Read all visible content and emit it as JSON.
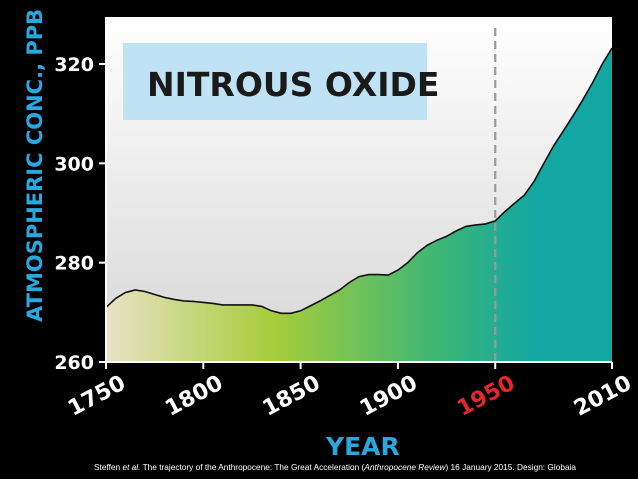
{
  "chart_data": {
    "type": "area",
    "title": "NITROUS OXIDE",
    "xlabel": "YEAR",
    "ylabel": "ATMOSPHERIC CONC., PPB",
    "xlim": [
      1750,
      2010
    ],
    "ylim": [
      260,
      325
    ],
    "x_ticks": [
      "1750",
      "1800",
      "1850",
      "1900",
      "1950",
      "2010"
    ],
    "y_ticks": [
      "260",
      "280",
      "300",
      "320"
    ],
    "highlight_tick": "1950",
    "reference_line_x": 1950,
    "grid": false,
    "x": [
      1750,
      1755,
      1760,
      1765,
      1770,
      1775,
      1780,
      1785,
      1790,
      1795,
      1800,
      1805,
      1810,
      1815,
      1820,
      1825,
      1830,
      1835,
      1840,
      1845,
      1850,
      1855,
      1860,
      1865,
      1870,
      1875,
      1880,
      1885,
      1890,
      1895,
      1900,
      1905,
      1910,
      1915,
      1920,
      1925,
      1930,
      1935,
      1940,
      1945,
      1950,
      1955,
      1960,
      1965,
      1970,
      1975,
      1980,
      1985,
      1990,
      1995,
      2000,
      2005,
      2010
    ],
    "y": [
      271,
      272.8,
      274,
      274.5,
      274.2,
      273.6,
      273,
      272.6,
      272.3,
      272.2,
      272,
      271.8,
      271.5,
      271.5,
      271.5,
      271.5,
      271.2,
      270.3,
      269.8,
      269.8,
      270.3,
      271.3,
      272.3,
      273.4,
      274.5,
      276,
      277.2,
      277.6,
      277.6,
      277.5,
      278.5,
      280,
      282,
      283.5,
      284.5,
      285.3,
      286.4,
      287.3,
      287.6,
      287.8,
      288.4,
      290.3,
      292,
      293.6,
      296.4,
      300,
      303.5,
      306.5,
      309.6,
      312.8,
      316.2,
      320,
      323.2
    ],
    "fill_colors": [
      "#e8e2c6",
      "#a6cd3a",
      "#3cb676",
      "#12a7a2"
    ],
    "line_color": "#111111",
    "highlight_color": "#e5262b",
    "axis_title_color": "#29a8e0",
    "title_box_color": "#bfe2f4",
    "plot_background": "#f0f0f0"
  },
  "credit": {
    "prefix": "Steffen ",
    "etal": "et al.",
    "middle": " The trajectory of the Anthropocene: The Great Acceleration (",
    "journal": "Anthropocene Review",
    "suffix": ") 16 January 2015. Design: Globaia"
  }
}
